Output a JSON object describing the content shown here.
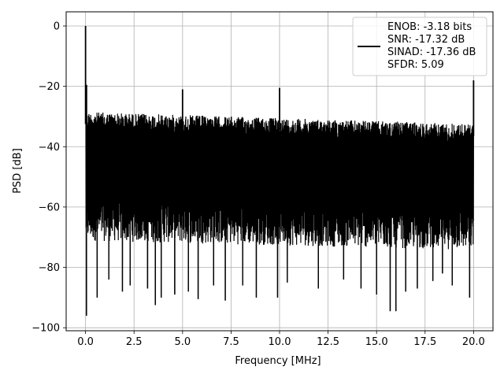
{
  "chart_data": {
    "type": "line",
    "xlabel": "Frequency [MHz]",
    "ylabel": "PSD [dB]",
    "xlim": [
      -1.0,
      21.0
    ],
    "ylim": [
      -101.0,
      4.7
    ],
    "xticks": [
      0.0,
      2.5,
      5.0,
      7.5,
      10.0,
      12.5,
      15.0,
      17.5,
      20.0
    ],
    "xtick_labels": [
      "0.0",
      "2.5",
      "5.0",
      "7.5",
      "10.0",
      "12.5",
      "15.0",
      "17.5",
      "20.0"
    ],
    "yticks": [
      0,
      -20,
      -40,
      -60,
      -80,
      -100
    ],
    "ytick_labels": [
      "0",
      "−20",
      "−40",
      "−60",
      "−80",
      "−100"
    ],
    "grid": true,
    "legend_position": "top-right",
    "legend": {
      "lines": [
        "ENOB: -3.18 bits",
        "SNR: -17.32 dB",
        "SINAD: -17.36 dB",
        "SFDR: 5.09"
      ]
    },
    "series": [
      {
        "color": "#000000",
        "noise_floor": {
          "upper_envelope_db": [
            [
              0.1,
              -28.5
            ],
            [
              5.0,
              -29.5
            ],
            [
              10.0,
              -30.5
            ],
            [
              15.0,
              -31.5
            ],
            [
              20.0,
              -32.5
            ]
          ],
          "lower_typical_db": [
            [
              0.1,
              -67
            ],
            [
              20.0,
              -70
            ]
          ],
          "deep_dips": [
            [
              0.05,
              -96
            ],
            [
              0.6,
              -90
            ],
            [
              1.2,
              -84
            ],
            [
              1.9,
              -88
            ],
            [
              2.3,
              -86
            ],
            [
              3.2,
              -87
            ],
            [
              3.6,
              -92.5
            ],
            [
              3.9,
              -90
            ],
            [
              4.6,
              -89
            ],
            [
              5.3,
              -88
            ],
            [
              5.8,
              -90.5
            ],
            [
              6.6,
              -86
            ],
            [
              7.2,
              -91
            ],
            [
              8.1,
              -86
            ],
            [
              8.8,
              -90
            ],
            [
              9.9,
              -90
            ],
            [
              10.4,
              -85
            ],
            [
              12.0,
              -87
            ],
            [
              13.3,
              -84
            ],
            [
              14.2,
              -87
            ],
            [
              15.0,
              -89
            ],
            [
              15.7,
              -94.5
            ],
            [
              16.0,
              -94.5
            ],
            [
              16.5,
              -88
            ],
            [
              17.1,
              -87
            ],
            [
              17.9,
              -84.5
            ],
            [
              18.4,
              -82
            ],
            [
              18.9,
              -86
            ],
            [
              19.8,
              -90
            ]
          ]
        },
        "peaks": [
          [
            0.0,
            0.0
          ],
          [
            0.05,
            -19.5
          ],
          [
            5.0,
            -21.0
          ],
          [
            10.0,
            -20.5
          ],
          [
            20.0,
            -18.0
          ]
        ]
      }
    ]
  }
}
